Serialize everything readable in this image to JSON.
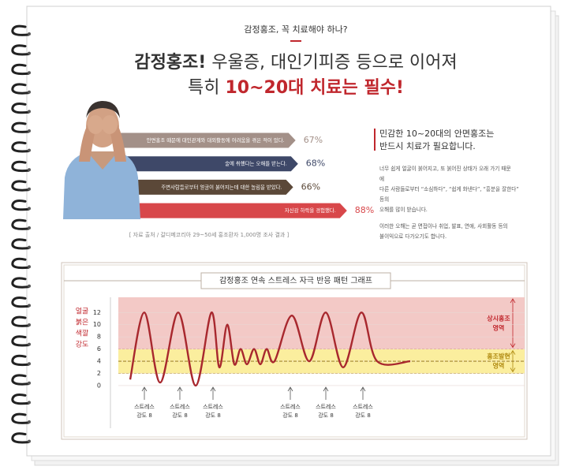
{
  "header": {
    "kicker": "감정홍조, 꼭 치료해야 하나?",
    "headline": [
      [
        "감정홍조!",
        " 우울증, 대인기피증 등으로 이어져"
      ],
      [
        "특히 ",
        "10~20대 치료는 필수!"
      ]
    ]
  },
  "survey": {
    "type": "bar",
    "categories": [
      "안면홍조 때문에 대인관계와 대외활동에 어려움을 겪은 적이 있다.",
      "술에 취했다는 오해를 받는다.",
      "주변사람들로부터 얼굴이 붉어지는데 대한 놀림을 받았다.",
      "자신감 하락을 경험했다."
    ],
    "values": [
      67,
      68,
      66,
      88
    ],
    "value_labels": [
      "67%",
      "68%",
      "66%",
      "88%"
    ],
    "colors": [
      "#a39088",
      "#3e4868",
      "#5b4838",
      "#d8474a"
    ],
    "source": "[ 자료 출처 / 갈디메코리아 29~50세 홍조환자 1,000명 조사 결과 ]"
  },
  "message": {
    "title": [
      "민감한 10~20대의 안면홍조는",
      "반드시 치료가 필요합니다."
    ],
    "paragraphs": [
      [
        "너무 쉽게 얼굴이 붉어지고, 또 붉어진 상태가 오래 가기 때문",
        "에",
        "다른 사람들로부터 “소심하다”, “쉽게 화낸다”, “흥분을 잘한다”",
        "등의",
        "오해를 많이 받습니다."
      ],
      [
        "이러한 오해는 곧 면접이나 취업, 발표, 연애, 사회활동 등의",
        "불이익으로 다가오기도 합니다."
      ]
    ]
  },
  "chart_data": {
    "type": "line",
    "title": "감정홍조 연속 스트레스 자극 반응 패턴 그래프",
    "ylabel": [
      "얼굴",
      "붉은",
      "색깔",
      "강도"
    ],
    "x": [
      3,
      6.6,
      10.6,
      15.2,
      19.6,
      23.6,
      25.6,
      27.6,
      29.4,
      31,
      32.6,
      34.4,
      36,
      37.6,
      39.6,
      44,
      48.4,
      52.6,
      57,
      61.6,
      65.6,
      74
    ],
    "series": [
      {
        "color": "#a8282e",
        "values": [
          1,
          12,
          0.5,
          12,
          0,
          12,
          3,
          10,
          3.5,
          6,
          3.5,
          6,
          3.5,
          6,
          4,
          11.5,
          4,
          12,
          3,
          12,
          4,
          4
        ]
      }
    ],
    "xlim": [
      0,
      103
    ],
    "ylim": [
      -7,
      14.5
    ],
    "yticks": [
      0,
      2,
      4,
      6,
      8,
      10,
      12
    ],
    "grid": true,
    "reference_lines": [
      4
    ],
    "zones": [
      {
        "label": [
          "상시홍조",
          "영역"
        ],
        "range": [
          6,
          14.5
        ],
        "color": "#f3c9c6",
        "text_color": "#c0272d"
      },
      {
        "label": [
          "홍조발현",
          "영역"
        ],
        "range": [
          2,
          6
        ],
        "color": "#fbee9e",
        "text_color": "#b08a10"
      }
    ],
    "annotations": [
      {
        "x": 6.6,
        "label": [
          "스트레스",
          "강도 8"
        ]
      },
      {
        "x": 15.6,
        "label": [
          "스트레스",
          "강도 8"
        ]
      },
      {
        "x": 24,
        "label": [
          "스트레스",
          "강도 8"
        ]
      },
      {
        "x": 43.6,
        "label": [
          "스트레스",
          "강도 8"
        ]
      },
      {
        "x": 52.6,
        "label": [
          "스트레스",
          "강도 8"
        ]
      },
      {
        "x": 62,
        "label": [
          "스트레스",
          "강도 8"
        ]
      }
    ]
  }
}
